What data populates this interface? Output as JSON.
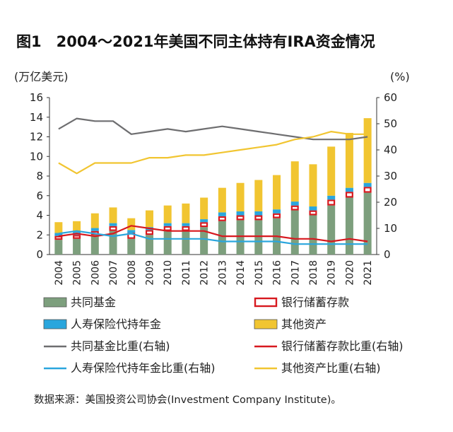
{
  "chart_data": {
    "type": "bar",
    "title": "图1　2004～2021年美国不同主体持有IRA资金情况",
    "left_unit": "(万亿美元)",
    "right_unit": "(%)",
    "categories": [
      "2004",
      "2005",
      "2006",
      "2007",
      "2008",
      "2009",
      "2010",
      "2011",
      "2012",
      "2013",
      "2014",
      "2015",
      "2016",
      "2017",
      "2018",
      "2019",
      "2020",
      "2021"
    ],
    "left_axis": {
      "ylim": [
        0,
        16
      ],
      "ticks": [
        "0",
        "2",
        "4",
        "6",
        "8",
        "10",
        "12",
        "14",
        "16"
      ]
    },
    "right_axis": {
      "ylim": [
        0,
        60
      ],
      "ticks": [
        "0",
        "10",
        "20",
        "30",
        "40",
        "50",
        "60"
      ]
    },
    "series": [
      {
        "name": "共同基金",
        "kind": "stacked_bar",
        "color": "#7d9f7d",
        "values": [
          1.5,
          1.6,
          2.0,
          2.4,
          1.6,
          2.0,
          2.4,
          2.4,
          2.8,
          3.4,
          3.5,
          3.5,
          3.7,
          4.5,
          4.0,
          5.0,
          5.8,
          6.3
        ]
      },
      {
        "name": "银行储蓄存款",
        "kind": "stacked_bar",
        "color": "#d7191f",
        "values": [
          0.4,
          0.4,
          0.4,
          0.5,
          0.6,
          0.5,
          0.5,
          0.5,
          0.5,
          0.5,
          0.5,
          0.5,
          0.5,
          0.5,
          0.5,
          0.6,
          0.6,
          0.6
        ]
      },
      {
        "name": "人寿保险代持年金",
        "kind": "stacked_bar",
        "color": "#2aa6dd",
        "values": [
          0.3,
          0.3,
          0.3,
          0.3,
          0.3,
          0.3,
          0.3,
          0.3,
          0.3,
          0.4,
          0.4,
          0.4,
          0.4,
          0.4,
          0.4,
          0.4,
          0.4,
          0.4
        ]
      },
      {
        "name": "其他资产",
        "kind": "stacked_bar",
        "color": "#f1c531",
        "values": [
          1.1,
          1.1,
          1.5,
          1.6,
          1.2,
          1.7,
          1.8,
          2.0,
          2.2,
          2.5,
          2.9,
          3.2,
          3.5,
          4.1,
          4.3,
          5.0,
          5.6,
          6.6
        ]
      },
      {
        "name": "共同基金比重(右轴)",
        "kind": "line",
        "color": "#6e6e70",
        "values": [
          48,
          52,
          51,
          51,
          46,
          47,
          48,
          47,
          48,
          49,
          48,
          47,
          46,
          45,
          44,
          44,
          44,
          45
        ]
      },
      {
        "name": "银行储蓄存款比重(右轴)",
        "kind": "line",
        "color": "#d7191f",
        "values": [
          7,
          8,
          7,
          8,
          11,
          10,
          9,
          9,
          9,
          7,
          7,
          7,
          7,
          6,
          6,
          5,
          6,
          5
        ]
      },
      {
        "name": "人寿保险代持年金比重(右轴)",
        "kind": "line",
        "color": "#2aa6dd",
        "values": [
          8,
          9,
          8,
          7,
          8,
          6,
          6,
          6,
          6,
          5,
          5,
          5,
          5,
          4,
          4,
          4,
          4,
          4
        ]
      },
      {
        "name": "其他资产比重(右轴)",
        "kind": "line",
        "color": "#f1c531",
        "values": [
          35,
          31,
          35,
          35,
          35,
          37,
          37,
          38,
          38,
          39,
          40,
          41,
          42,
          44,
          45,
          47,
          46,
          46
        ]
      }
    ],
    "legend": [
      {
        "label": "共同基金",
        "marker": "box",
        "color": "#7d9f7d"
      },
      {
        "label": "银行储蓄存款",
        "marker": "box",
        "color": "#d7191f"
      },
      {
        "label": "人寿保险代持年金",
        "marker": "box",
        "color": "#2aa6dd"
      },
      {
        "label": "其他资产",
        "marker": "box",
        "color": "#f1c531"
      },
      {
        "label": "共同基金比重(右轴)",
        "marker": "line",
        "color": "#6e6e70"
      },
      {
        "label": "银行储蓄存款比重(右轴)",
        "marker": "line",
        "color": "#d7191f"
      },
      {
        "label": "人寿保险代持年金比重(右轴)",
        "marker": "line",
        "color": "#2aa6dd"
      },
      {
        "label": "其他资产比重(右轴)",
        "marker": "line",
        "color": "#f1c531"
      }
    ],
    "legend_placement": "bottom",
    "grid": false,
    "source": "数据来源：美国投资公司协会(Investment Company Institute)。"
  }
}
